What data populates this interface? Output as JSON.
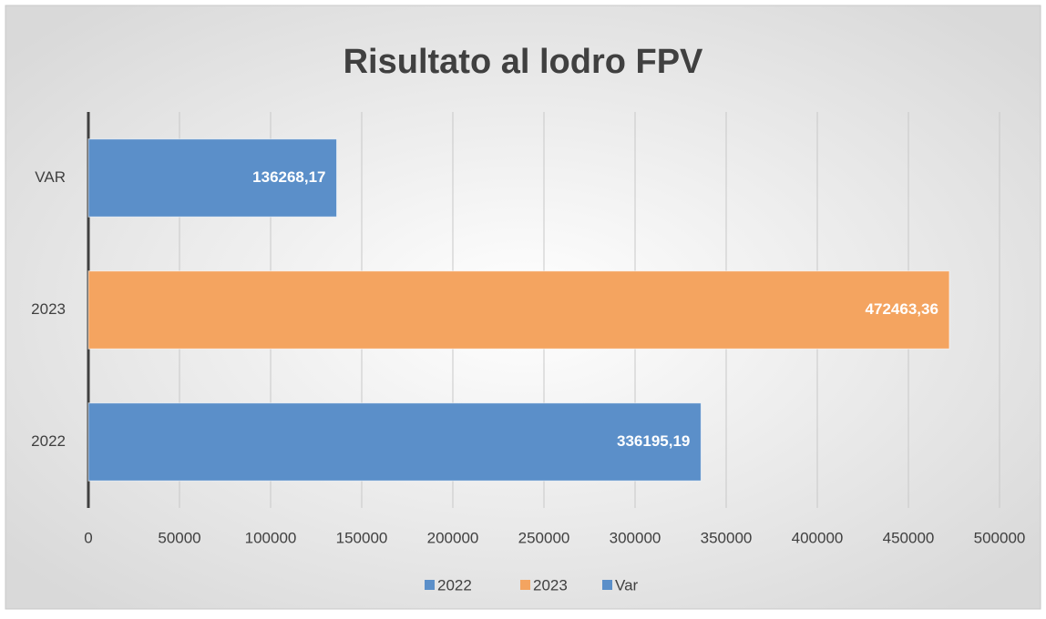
{
  "chart_data": {
    "type": "bar",
    "orientation": "horizontal",
    "title": "Risultato al lodro  FPV",
    "categories": [
      "2022",
      "2023",
      "VAR"
    ],
    "series": [
      {
        "name": "2022",
        "color": "#5b8fc9",
        "values": [
          336195.19,
          null,
          null
        ],
        "value_labels": [
          "336195,19",
          null,
          null
        ]
      },
      {
        "name": "2023",
        "color": "#f4a460",
        "values": [
          null,
          472463.36,
          null
        ],
        "value_labels": [
          null,
          "472463,36",
          null
        ]
      },
      {
        "name": "Var",
        "color": "#5b8fc9",
        "values": [
          null,
          null,
          136268.17
        ],
        "value_labels": [
          null,
          null,
          "136268,17"
        ]
      }
    ],
    "xlim": [
      0,
      500000
    ],
    "xticks": [
      0,
      50000,
      100000,
      150000,
      200000,
      250000,
      300000,
      350000,
      400000,
      450000,
      500000
    ],
    "grid": true,
    "legend": "bottom"
  }
}
